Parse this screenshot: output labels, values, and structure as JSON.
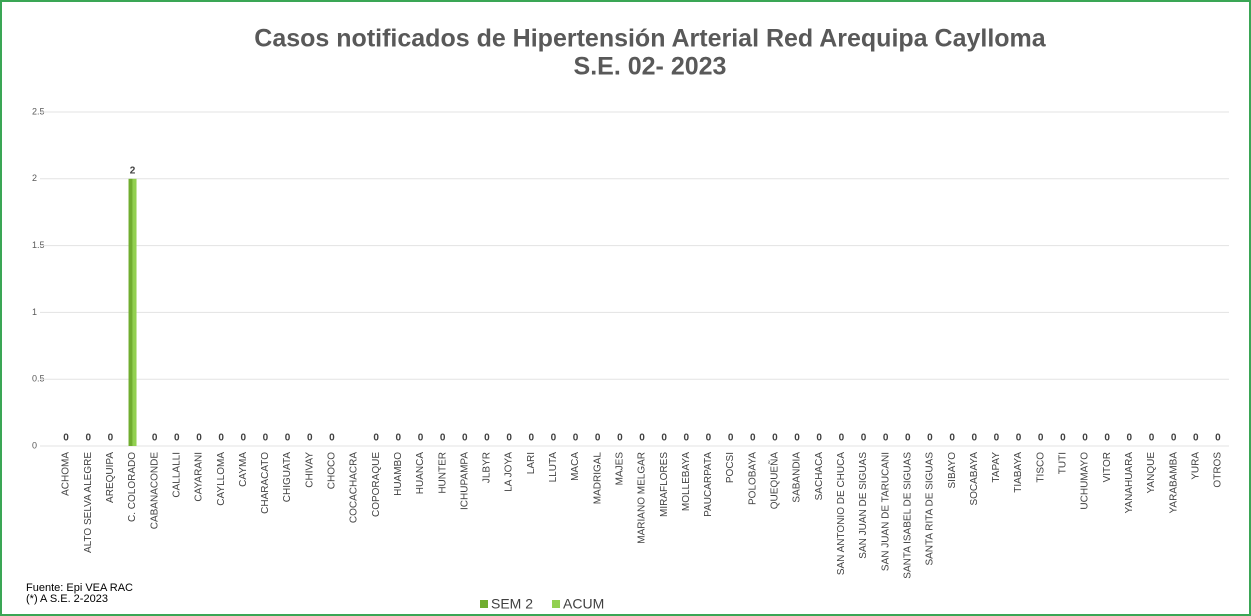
{
  "chart_data": {
    "type": "bar",
    "title": "Casos notificados de Hipertensión Arterial Red Arequipa  Caylloma",
    "subtitle": "S.E. 02- 2023",
    "categories": [
      "ACHOMA",
      "ALTO SELVA ALEGRE",
      "AREQUIPA",
      "C. COLORADO",
      "CABANACONDE",
      "CALLALLI",
      "CAYARANI",
      "CAYLLOMA",
      "CAYMA",
      "CHARACATO",
      "CHIGUATA",
      "CHIVAY",
      "CHOCO",
      "COCACHACRA",
      "COPORAQUE",
      "HUAMBO",
      "HUANCA",
      "HUNTER",
      "ICHUPAMPA",
      "JLBYR",
      "LA JOYA",
      "LARI",
      "LLUTA",
      "MACA",
      "MADRIGAL",
      "MAJES",
      "MARIANO MELGAR",
      "MIRAFLORES",
      "MOLLEBAYA",
      "PAUCARPATA",
      "POCSI",
      "POLOBAYA",
      "QUEQUEÑA",
      "SABANDIA",
      "SACHACA",
      "SAN ANTONIO DE CHUCA",
      "SAN JUAN DE SIGUAS",
      "SAN JUAN DE TARUCANI",
      "SANTA ISABEL DE SIGUAS",
      "SANTA RITA DE SIGUAS",
      "SIBAYO",
      "SOCABAYA",
      "TAPAY",
      "TIABAYA",
      "TISCO",
      "TUTI",
      "UCHUMAYO",
      "VITOR",
      "YANAHUARA",
      "YANQUE",
      "YARABAMBA",
      "YURA",
      "OTROS"
    ],
    "series": [
      {
        "name": "SEM 2",
        "color": "#70ad2f",
        "values": [
          0,
          0,
          0,
          2,
          0,
          0,
          0,
          0,
          0,
          0,
          0,
          0,
          0,
          null,
          0,
          0,
          0,
          0,
          0,
          0,
          0,
          0,
          0,
          0,
          0,
          0,
          0,
          0,
          0,
          0,
          0,
          0,
          0,
          0,
          0,
          0,
          0,
          0,
          0,
          0,
          0,
          0,
          0,
          0,
          0,
          0,
          0,
          0,
          0,
          0,
          0,
          0,
          0
        ]
      },
      {
        "name": "ACUM",
        "color": "#92d050",
        "values": [
          0,
          0,
          0,
          2,
          0,
          0,
          0,
          0,
          0,
          0,
          0,
          0,
          0,
          null,
          0,
          0,
          0,
          0,
          0,
          0,
          0,
          0,
          0,
          0,
          0,
          0,
          0,
          0,
          0,
          0,
          0,
          0,
          0,
          0,
          0,
          0,
          0,
          0,
          0,
          0,
          0,
          0,
          0,
          0,
          0,
          0,
          0,
          0,
          0,
          0,
          0,
          0,
          0
        ]
      }
    ],
    "ylim": [
      0,
      2.5
    ],
    "yticks": [
      0,
      0.5,
      1,
      1.5,
      2,
      2.5
    ],
    "grid": true,
    "footnotes": [
      "Fuente: Epi VEA RAC",
      "(*) A S.E. 2-2023"
    ]
  }
}
